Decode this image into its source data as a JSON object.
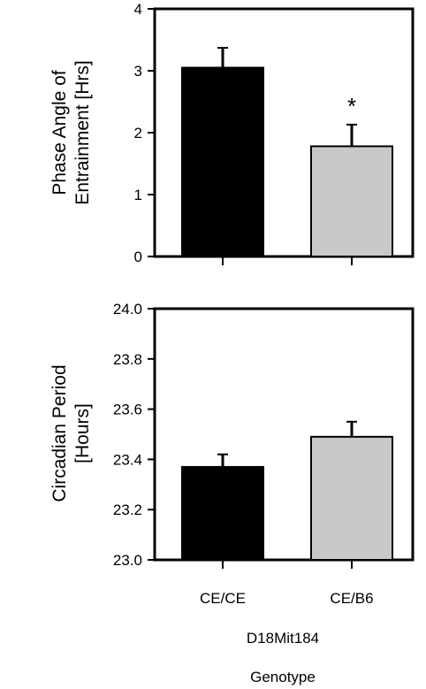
{
  "chart_data": [
    {
      "type": "bar",
      "categories": [
        "CE/CE",
        "CE/B6"
      ],
      "values": [
        3.05,
        1.78
      ],
      "errors": [
        0.32,
        0.35
      ],
      "colors": [
        "#000000",
        "#c8c8c8"
      ],
      "ylabel": "Phase Angle of Entrainment [Hrs]",
      "ylabel_lines": [
        "Phase Angle of",
        "Entrainment [Hrs]"
      ],
      "ylim": [
        0,
        4
      ],
      "yticks": [
        "0",
        "1",
        "2",
        "3",
        "4"
      ],
      "annotations": [
        "",
        "*"
      ],
      "grid": false
    },
    {
      "type": "bar",
      "categories": [
        "CE/CE",
        "CE/B6"
      ],
      "values": [
        23.37,
        23.49
      ],
      "errors": [
        0.05,
        0.06
      ],
      "colors": [
        "#000000",
        "#c8c8c8"
      ],
      "ylabel": "Circadian Period [Hours]",
      "ylabel_lines": [
        "Circadian Period",
        "[Hours]"
      ],
      "ylim": [
        23.0,
        24.0
      ],
      "yticks": [
        "23.0",
        "23.2",
        "23.4",
        "23.6",
        "23.8",
        "24.0"
      ],
      "grid": false
    }
  ],
  "xaxis": {
    "tick_labels": [
      "CE/CE",
      "CE/B6"
    ],
    "locus_label": "D18Mit184",
    "title": "Genotype"
  }
}
